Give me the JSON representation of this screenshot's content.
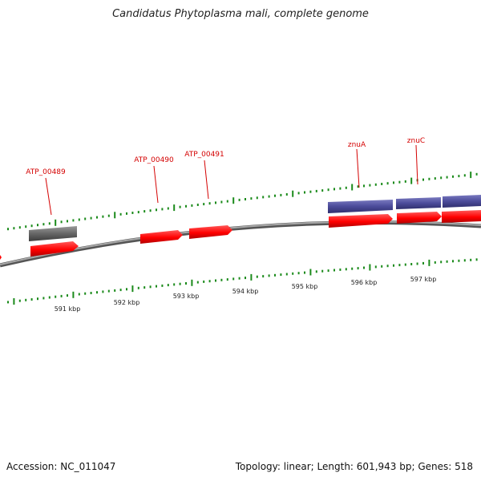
{
  "header": {
    "title": "Candidatus Phytoplasma mali, complete genome"
  },
  "footer": {
    "accession": "Accession: NC_011047",
    "summary": "Topology: linear; Length: 601,943 bp; Genes: 518"
  },
  "genes": [
    {
      "name": "ATP_00489"
    },
    {
      "name": "ATP_00490"
    },
    {
      "name": "ATP_00491"
    },
    {
      "name": "znuA"
    },
    {
      "name": "znuC"
    }
  ],
  "scale_labels": [
    "591 kbp",
    "592 kbp",
    "593 kbp",
    "594 kbp",
    "595 kbp",
    "596 kbp",
    "597 kbp"
  ],
  "colors": {
    "cds": "#ff0000",
    "gene_blue": "#4b4b9a",
    "gene_gray": "#666666",
    "ticks": "#1a8a1a",
    "backbone": "#8a8a8a",
    "labels": "#d40000"
  }
}
